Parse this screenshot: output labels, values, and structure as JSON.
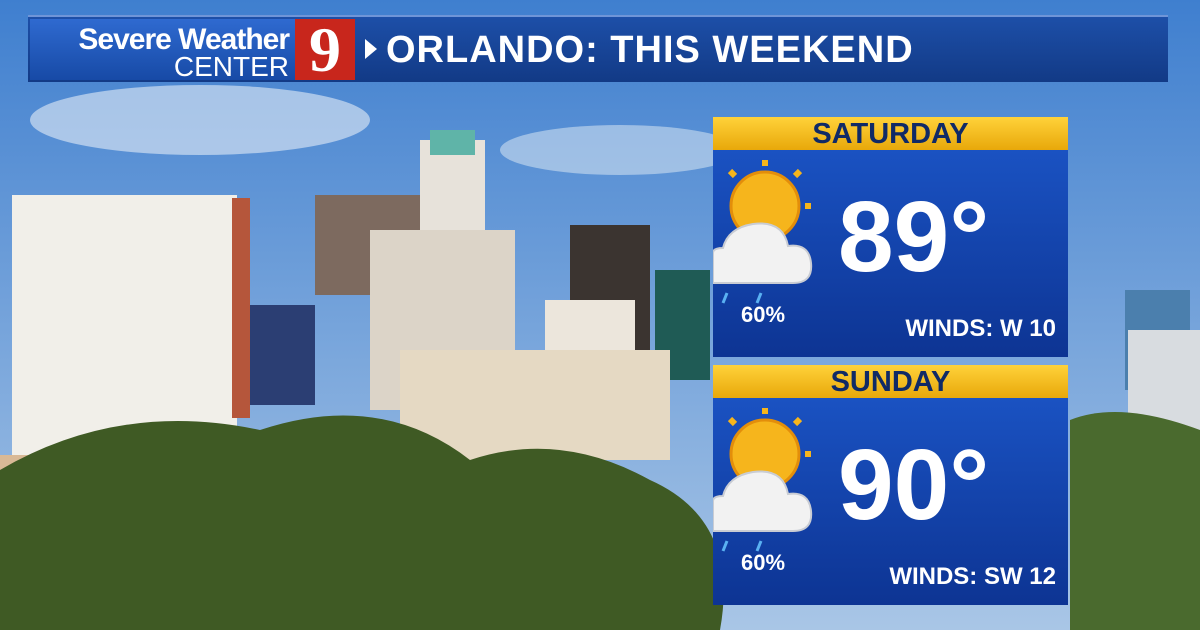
{
  "header": {
    "brand_line1": "Severe Weather",
    "brand_line2": "CENTER",
    "logo": "9",
    "title": "ORLANDO: THIS WEEKEND"
  },
  "forecast": [
    {
      "day": "SATURDAY",
      "temperature": "89°",
      "precipitation": "60%",
      "winds": "WINDS: W 10"
    },
    {
      "day": "SUNDAY",
      "temperature": "90°",
      "precipitation": "60%",
      "winds": "WINDS: SW 12"
    }
  ]
}
